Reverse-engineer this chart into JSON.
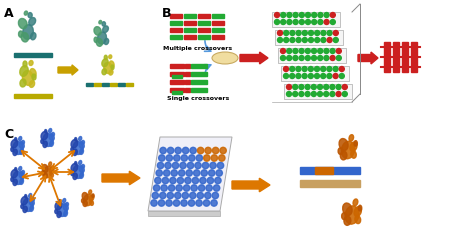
{
  "bg_color": "#ffffff",
  "label_A": "A",
  "label_B": "B",
  "label_C": "C",
  "text_multiple": "Multiple crossovers",
  "text_single": "Single crossovers",
  "fig_width": 4.74,
  "fig_height": 2.5,
  "dpi": 100,
  "green_dark": "#2e8b57",
  "green_protein": "#4a9a6a",
  "teal": "#3a8080",
  "yellow_green": "#a8b820",
  "yellow_protein": "#c8b820",
  "bar_green": "#1a7a30",
  "bar_teal": "#1a7070",
  "bar_yellow": "#b8aa00",
  "arrow_gold": "#c8a000",
  "red_bar": "#cc2020",
  "green_dot": "#22aa33",
  "blue_protein": "#3366cc",
  "orange_protein": "#cc6600",
  "orange_arrow": "#dd7700"
}
